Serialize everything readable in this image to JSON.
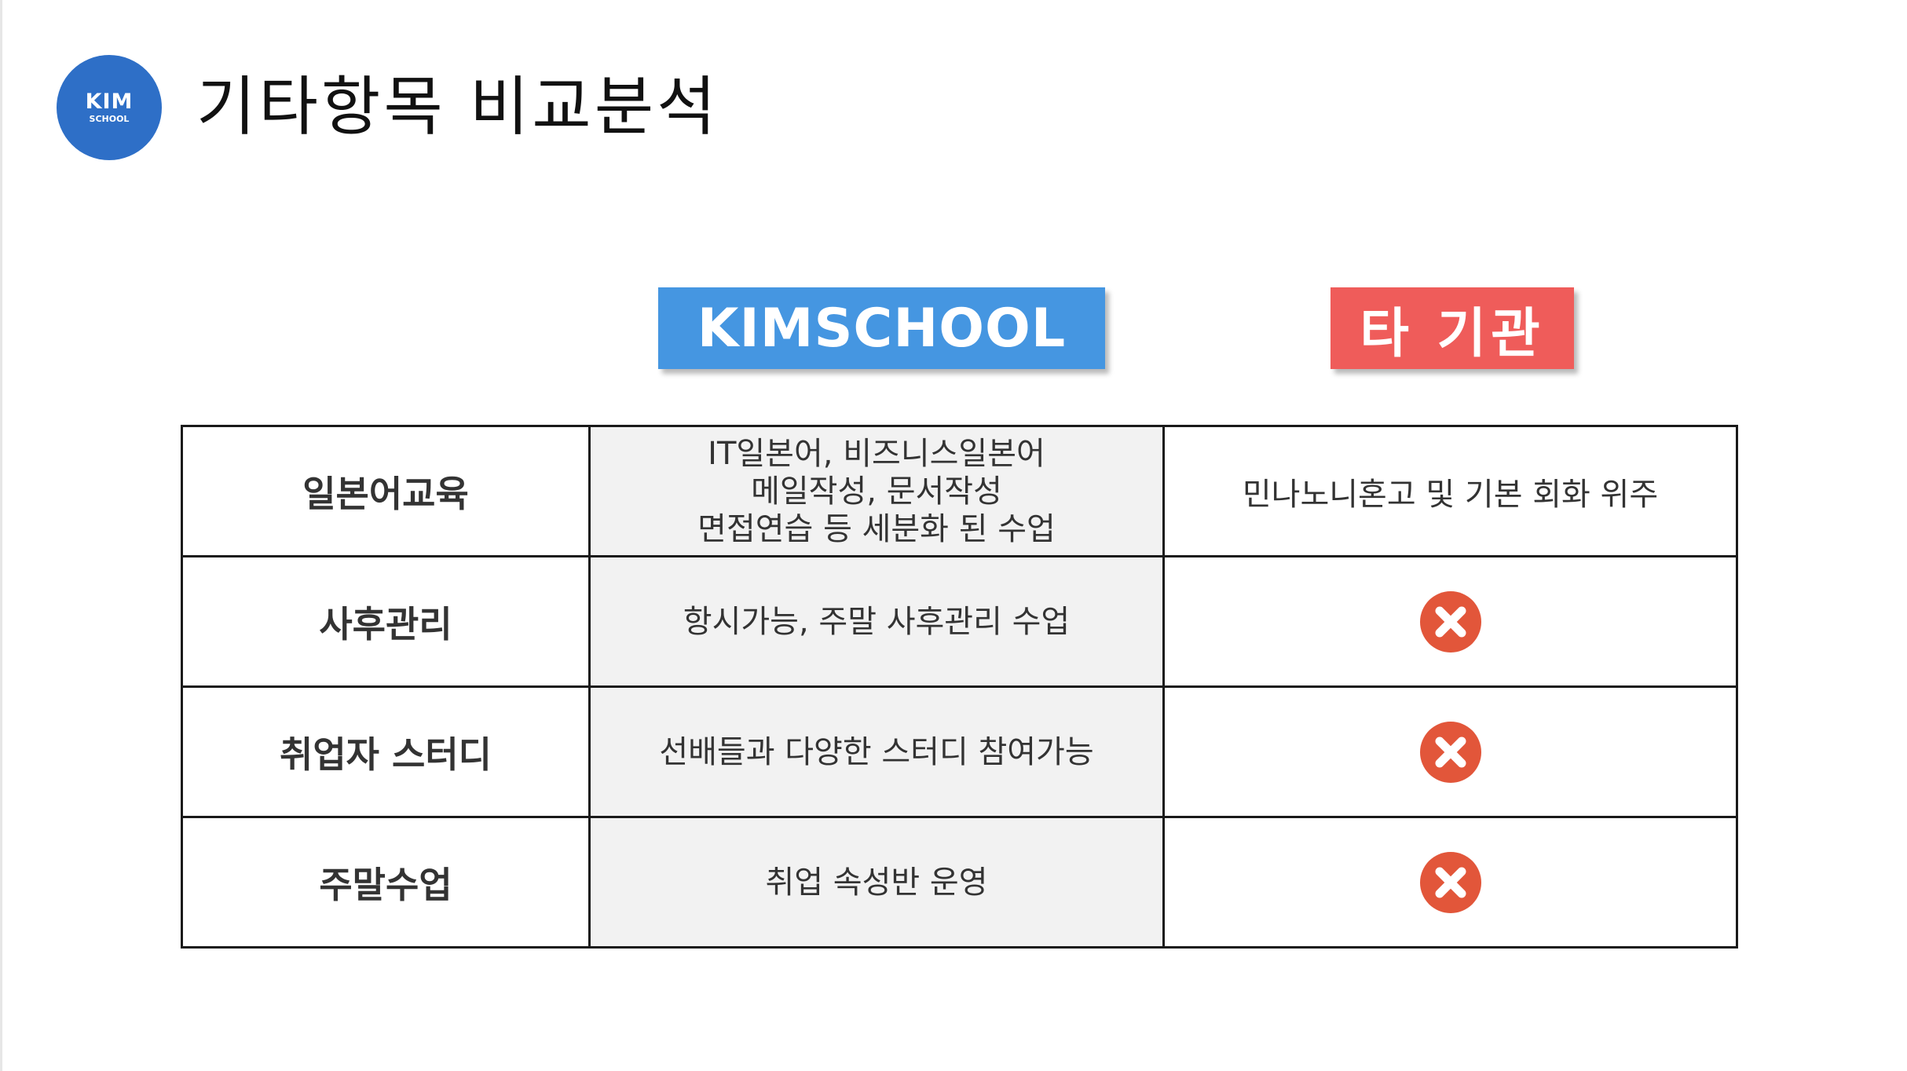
{
  "header": {
    "logo_main": "KIM",
    "logo_sub": "SCHOOL",
    "title": "기타항목 비교분석"
  },
  "columns": {
    "kimschool": "KIMSCHOOL",
    "other": "타 기관"
  },
  "colors": {
    "logo": "#2e6fc7",
    "kimschool_badge": "#4596e1",
    "other_badge": "#ef5c5a",
    "x_icon": "#e2563a",
    "kim_cell_bg": "#f2f2f2"
  },
  "rows": [
    {
      "label": "일본어교육",
      "kimschool": [
        "IT일본어, 비즈니스일본어",
        "메일작성, 문서작성",
        "면접연습 등 세분화 된 수업"
      ],
      "other": "민나노니혼고 및 기본 회화 위주"
    },
    {
      "label": "사후관리",
      "kimschool": [
        "항시가능, 주말 사후관리 수업"
      ],
      "other_icon": "x-circle-icon"
    },
    {
      "label": "취업자 스터디",
      "kimschool": [
        "선배들과 다양한 스터디 참여가능"
      ],
      "other_icon": "x-circle-icon"
    },
    {
      "label": "주말수업",
      "kimschool": [
        "취업 속성반 운영"
      ],
      "other_icon": "x-circle-icon"
    }
  ]
}
